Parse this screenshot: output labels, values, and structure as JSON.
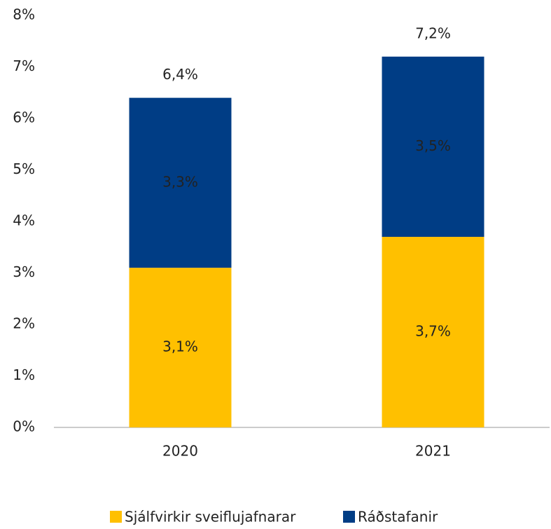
{
  "chart_data": {
    "type": "stacked_bar",
    "categories": [
      "2020",
      "2021"
    ],
    "series": [
      {
        "name": "Sjálfvirkir sveiflujafnarar",
        "color": "#ffc000",
        "values": [
          3.1,
          3.7
        ],
        "value_labels": [
          "3,1%",
          "3,7%"
        ]
      },
      {
        "name": "Ráðstafanir",
        "color": "#003d85",
        "values": [
          3.3,
          3.5
        ],
        "value_labels": [
          "3,3%",
          "3,5%"
        ]
      }
    ],
    "totals": {
      "values": [
        6.4,
        7.2
      ],
      "value_labels": [
        "6,4%",
        "7,2%"
      ]
    },
    "ylim": [
      0,
      8
    ],
    "yticks": [
      {
        "value": 0,
        "label": "0%"
      },
      {
        "value": 1,
        "label": "1%"
      },
      {
        "value": 2,
        "label": "2%"
      },
      {
        "value": 3,
        "label": "3%"
      },
      {
        "value": 4,
        "label": "4%"
      },
      {
        "value": 5,
        "label": "5%"
      },
      {
        "value": 6,
        "label": "6%"
      },
      {
        "value": 7,
        "label": "7%"
      },
      {
        "value": 8,
        "label": "8%"
      }
    ],
    "grid": false,
    "legend": "bottom"
  }
}
